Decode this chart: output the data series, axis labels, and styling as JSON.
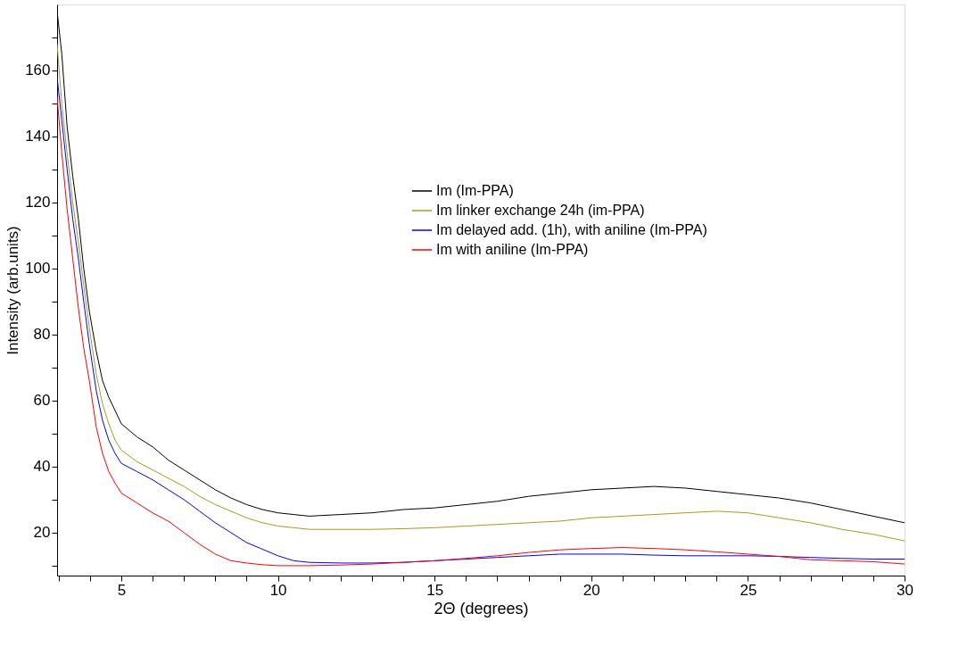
{
  "chart_data": {
    "type": "line",
    "xlabel": "2Θ (degrees)",
    "ylabel": "Intensity (arb.units)",
    "x": [
      2.95,
      3.1,
      3.27,
      3.45,
      3.63,
      3.8,
      3.98,
      4.2,
      4.4,
      4.6,
      4.8,
      5,
      5.5,
      6,
      6.5,
      7,
      7.5,
      8,
      8.5,
      9,
      9.5,
      10,
      10.5,
      11,
      12,
      13,
      14,
      15,
      16,
      17,
      18,
      19,
      20,
      21,
      22,
      23,
      24,
      25,
      26,
      27,
      28,
      29,
      30
    ],
    "series": [
      {
        "name": "Im (Im-PPA)",
        "color": "#000000",
        "values": [
          178,
          165,
          143,
          128,
          115,
          100,
          87,
          75,
          66,
          61,
          57,
          53,
          49,
          46,
          42,
          39,
          36,
          33,
          30.5,
          28.5,
          27,
          26,
          25.5,
          25,
          25.5,
          26,
          27,
          27.5,
          28.5,
          29.5,
          31,
          32,
          33,
          33.5,
          34,
          33.5,
          32.5,
          31.5,
          30.5,
          29,
          27,
          25,
          23
        ]
      },
      {
        "name": "Im linker exchange 24h (im-PPA)",
        "color": "#a0a020",
        "values": [
          168,
          150,
          135,
          120,
          108,
          95,
          82,
          68,
          59,
          53,
          48,
          45,
          41.5,
          39,
          36.5,
          34,
          31,
          28.5,
          26.5,
          24.5,
          23,
          22,
          21.5,
          21,
          21,
          21,
          21.2,
          21.5,
          22,
          22.5,
          23,
          23.5,
          24.5,
          25,
          25.5,
          26,
          26.5,
          26,
          24.5,
          23,
          21,
          19.5,
          17.5
        ]
      },
      {
        "name": "Im delayed add. (1h), with aniline (Im-PPA)",
        "color": "#0000ff",
        "values": [
          158,
          145,
          130,
          115,
          103,
          90,
          77,
          63,
          54,
          48,
          44,
          41,
          38.5,
          36,
          33,
          30,
          26.5,
          23,
          20,
          17,
          15,
          13,
          11.5,
          11,
          10.8,
          10.8,
          11,
          11.5,
          12,
          12.5,
          13,
          13.5,
          13.5,
          13.5,
          13.2,
          13,
          13,
          13,
          12.8,
          12.5,
          12.2,
          12,
          12
        ]
      },
      {
        "name": "Im with aniline (Im-PPA)",
        "color": "#ff0000",
        "values": [
          152,
          135,
          118,
          103,
          88,
          76,
          66,
          52,
          44,
          38.5,
          35,
          32,
          29,
          26,
          23.5,
          20,
          16.5,
          13.5,
          11.5,
          10.8,
          10.3,
          10,
          10,
          10,
          10.2,
          10.5,
          11,
          11.5,
          12.2,
          13,
          14,
          14.8,
          15.2,
          15.5,
          15.2,
          14.8,
          14.2,
          13.5,
          12.8,
          11.8,
          11.5,
          11.2,
          10.5
        ]
      }
    ],
    "xlim": [
      2.95,
      30
    ],
    "xticks": [
      {
        "value": 3,
        "label": null
      },
      {
        "value": 4,
        "label": null
      },
      5,
      {
        "value": 6,
        "label": null
      },
      {
        "value": 7,
        "label": null
      },
      {
        "value": 8,
        "label": null
      },
      {
        "value": 9,
        "label": null
      },
      10,
      {
        "value": 11,
        "label": null
      },
      {
        "value": 12,
        "label": null
      },
      {
        "value": 13,
        "label": null
      },
      {
        "value": 14,
        "label": null
      },
      15,
      {
        "value": 16,
        "label": null
      },
      {
        "value": 17,
        "label": null
      },
      {
        "value": 18,
        "label": null
      },
      {
        "value": 19,
        "label": null
      },
      20,
      {
        "value": 21,
        "label": null
      },
      {
        "value": 22,
        "label": null
      },
      {
        "value": 23,
        "label": null
      },
      {
        "value": 24,
        "label": null
      },
      25,
      {
        "value": 26,
        "label": null
      },
      {
        "value": 27,
        "label": null
      },
      {
        "value": 28,
        "label": null
      },
      {
        "value": 29,
        "label": null
      },
      30
    ],
    "ylim": [
      7,
      180
    ],
    "yticks": [
      {
        "value": 10,
        "label": null
      },
      20,
      {
        "value": 30,
        "label": null
      },
      40,
      {
        "value": 50,
        "label": null
      },
      60,
      {
        "value": 70,
        "label": null
      },
      80,
      {
        "value": 90,
        "label": null
      },
      100,
      {
        "value": 110,
        "label": null
      },
      120,
      {
        "value": 130,
        "label": null
      },
      140,
      {
        "value": 150,
        "label": null
      },
      160,
      {
        "value": 170,
        "label": null
      }
    ],
    "grid": false,
    "legend": "top right",
    "marker": "none",
    "line_style": "solid"
  }
}
